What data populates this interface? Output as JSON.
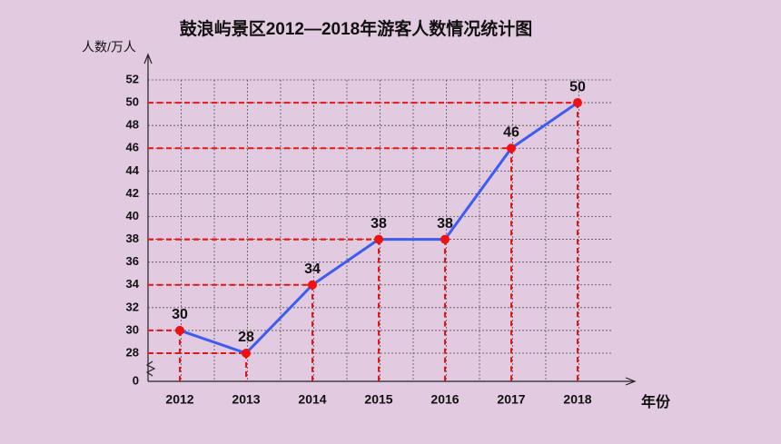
{
  "chart_data": {
    "type": "line",
    "title": "鼓浪屿景区2012—2018年游客人数情况统计图",
    "y_label": "人数/万人",
    "x_label": "年份",
    "categories": [
      "2012",
      "2013",
      "2014",
      "2015",
      "2016",
      "2017",
      "2018"
    ],
    "values": [
      30,
      28,
      34,
      38,
      38,
      46,
      50
    ],
    "color": "#3d5cf0",
    "marker_color": "#ee1111",
    "guide_color": "#ee1111",
    "ylim": [
      0,
      52
    ],
    "y_break": [
      0,
      28
    ],
    "yticks": [
      0,
      28,
      30,
      32,
      34,
      36,
      38,
      40,
      42,
      44,
      46,
      48,
      50,
      52
    ],
    "grid": true
  }
}
